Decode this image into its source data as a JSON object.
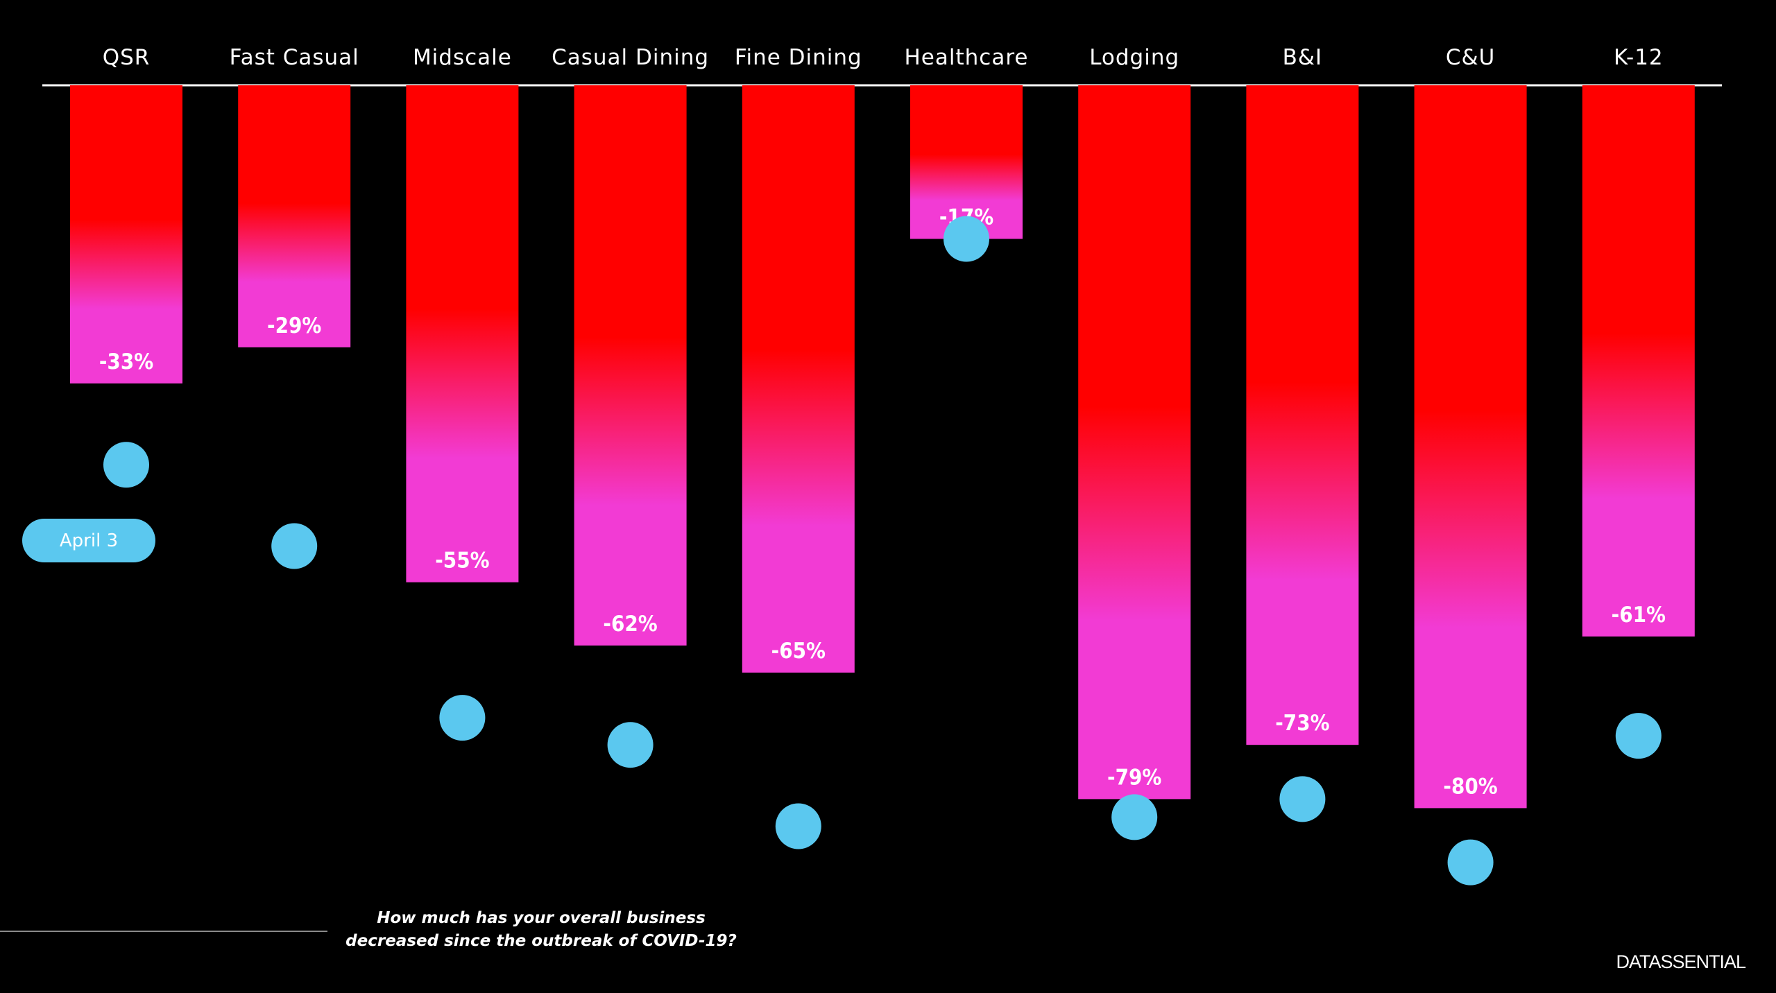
{
  "chart_data": {
    "type": "bar",
    "categories": [
      "QSR",
      "Fast Casual",
      "Midscale",
      "Casual Dining",
      "Fine Dining",
      "Healthcare",
      "Lodging",
      "B&I",
      "C&U",
      "K-12"
    ],
    "series": [
      {
        "values": [
          -33,
          -29,
          -55,
          -62,
          -65,
          -17,
          -79,
          -73,
          -80,
          -61
        ],
        "labels": [
          "-33%",
          "-29%",
          "-55%",
          "-62%",
          "-65%",
          "-17%",
          "-79%",
          "-73%",
          "-80%",
          "-61%"
        ]
      },
      {
        "name": "April 3",
        "values": [
          -42,
          -51,
          -70,
          -73,
          -82,
          -17,
          -81,
          -79,
          -86,
          -72
        ]
      }
    ],
    "ylim": [
      -100,
      0
    ],
    "colors": {
      "bar_top": "#ff0000",
      "bar_bottom": "#f23bd4",
      "marker": "#5bc8ef",
      "axis": "#ffffff"
    }
  },
  "legend": {
    "marker_label": "April 3"
  },
  "question": "How much has your overall business decreased since the outbreak of COVID-19?",
  "brand": "DATASSENTIAL"
}
